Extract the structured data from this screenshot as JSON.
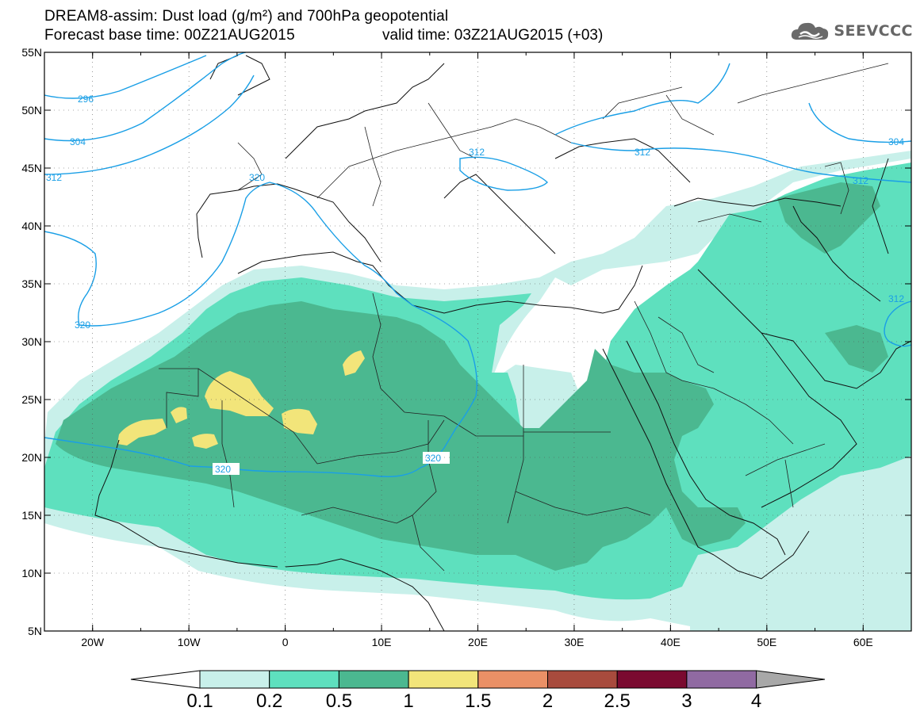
{
  "title": {
    "line1": "DREAM8-assim: Dust load (g/m²) and 700hPa geopotential",
    "line2_left": "Forecast base time: 00Z21AUG2015",
    "line2_right": "valid time: 03Z21AUG2015 (+03)"
  },
  "logo": {
    "text": "SEEVCCC",
    "icon": "cloud-icon"
  },
  "map": {
    "lon_ticks": [
      "20W",
      "10W",
      "0",
      "10E",
      "20E",
      "30E",
      "40E",
      "50E",
      "60E"
    ],
    "lat_ticks": [
      "55N",
      "50N",
      "45N",
      "40N",
      "35N",
      "30N",
      "25N",
      "20N",
      "15N",
      "10N",
      "5N"
    ],
    "lon_range": [
      -25,
      65
    ],
    "lat_range": [
      5,
      55
    ],
    "contour_color": "#1a9fe6",
    "contour_labels": [
      "296",
      "304",
      "312",
      "320",
      "320",
      "312",
      "312",
      "304",
      "312",
      "312",
      "320",
      "320"
    ]
  },
  "colorbar": {
    "ticks": [
      "0.1",
      "0.2",
      "0.5",
      "1",
      "1.5",
      "2",
      "2.5",
      "3",
      "4"
    ],
    "colors": [
      "#c8f0ea",
      "#5ee0be",
      "#4bb890",
      "#f2e57a",
      "#ea9066",
      "#a84b3d",
      "#7a0a30",
      "#906aa2"
    ],
    "under_color": "#ffffff",
    "over_color": "#a8a8a8"
  }
}
